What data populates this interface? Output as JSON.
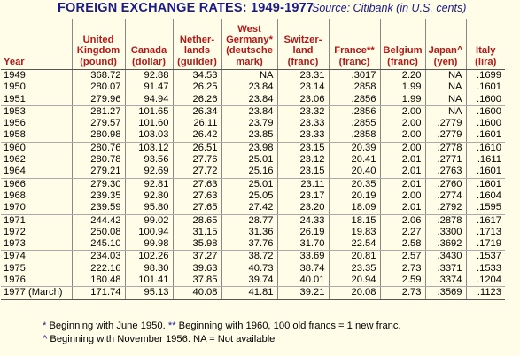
{
  "title": {
    "main": "FOREIGN EXCHANGE RATES: 1949-1977",
    "source": "Source: Citibank (in U.S. cents)"
  },
  "columns": [
    {
      "label": "Year"
    },
    {
      "label": "United Kingdom (pound)"
    },
    {
      "label": "Canada (dollar)"
    },
    {
      "label": "Nether- lands (guilder)"
    },
    {
      "label": "West Germany* (deutsche mark)"
    },
    {
      "label": "Switzer- land (franc)"
    },
    {
      "label": "France** (franc)"
    },
    {
      "label": "Belgium (franc)"
    },
    {
      "label": "Japan^ (yen)"
    },
    {
      "label": "Italy (lira)"
    }
  ],
  "header_lines": [
    [
      "Year"
    ],
    [
      "United",
      "Kingdom",
      "(pound)"
    ],
    [
      "Canada",
      "(dollar)"
    ],
    [
      "Nether-",
      "lands",
      "(guilder)"
    ],
    [
      "West",
      "Germany*",
      "(deutsche",
      "mark)"
    ],
    [
      "Switzer-",
      "land",
      "(franc)"
    ],
    [
      "France**",
      "(franc)"
    ],
    [
      "Belgium",
      "(franc)"
    ],
    [
      "Japan^",
      "(yen)"
    ],
    [
      "Italy",
      "(lira)"
    ]
  ],
  "rows": [
    [
      "1949",
      "368.72",
      "92.88",
      "34.53",
      "NA",
      "23.31",
      ".3017",
      "2.20",
      "NA",
      ".1699"
    ],
    [
      "1950",
      "280.07",
      "91.47",
      "26.25",
      "23.84",
      "23.14",
      ".2858",
      "1.99",
      "NA",
      ".1601"
    ],
    [
      "1951",
      "279.96",
      "94.94",
      "26.26",
      "23.84",
      "23.06",
      ".2856",
      "1.99",
      "NA",
      ".1600"
    ],
    [
      "1953",
      "281.27",
      "101.65",
      "26.34",
      "23.84",
      "23.32",
      ".2856",
      "2.00",
      "NA",
      ".1600"
    ],
    [
      "1956",
      "279.57",
      "101.60",
      "26.11",
      "23.79",
      "23.33",
      ".2855",
      "2.00",
      ".2779",
      ".1600"
    ],
    [
      "1958",
      "280.98",
      "103.03",
      "26.42",
      "23.85",
      "23.33",
      ".2858",
      "2.00",
      ".2779",
      ".1601"
    ],
    [
      "1960",
      "280.76",
      "103.12",
      "26.51",
      "23.98",
      "23.15",
      "20.39",
      "2.00",
      ".2778",
      ".1610"
    ],
    [
      "1962",
      "280.78",
      "93.56",
      "27.76",
      "25.01",
      "23.12",
      "20.41",
      "2.01",
      ".2771",
      ".1611"
    ],
    [
      "1964",
      "279.21",
      "92.69",
      "27.72",
      "25.16",
      "23.15",
      "20.40",
      "2.01",
      ".2763",
      ".1601"
    ],
    [
      "1966",
      "279.30",
      "92.81",
      "27.63",
      "25.01",
      "23.11",
      "20.35",
      "2.01",
      ".2760",
      ".1601"
    ],
    [
      "1968",
      "239.35",
      "92.80",
      "27.63",
      "25.05",
      "23.17",
      "20.19",
      "2.00",
      ".2774",
      ".1604"
    ],
    [
      "1970",
      "239.59",
      "95.80",
      "27.65",
      "27.42",
      "23.20",
      "18.09",
      "2.01",
      ".2792",
      ".1595"
    ],
    [
      "1971",
      "244.42",
      "99.02",
      "28.65",
      "28.77",
      "24.33",
      "18.15",
      "2.06",
      ".2878",
      ".1617"
    ],
    [
      "1972",
      "250.08",
      "100.94",
      "31.15",
      "31.36",
      "26.19",
      "19.83",
      "2.27",
      ".3300",
      ".1713"
    ],
    [
      "1973",
      "245.10",
      "99.98",
      "35.98",
      "37.76",
      "31.70",
      "22.54",
      "2.58",
      ".3692",
      ".1719"
    ],
    [
      "1974",
      "234.03",
      "102.26",
      "37.27",
      "38.72",
      "33.69",
      "20.81",
      "2.57",
      ".3430",
      ".1537"
    ],
    [
      "1975",
      "222.16",
      "98.30",
      "39.63",
      "40.73",
      "38.74",
      "23.35",
      "2.73",
      ".3371",
      ".1533"
    ],
    [
      "1976",
      "180.48",
      "101.41",
      "37.85",
      "39.74",
      "40.01",
      "20.94",
      "2.59",
      ".3374",
      ".1204"
    ],
    [
      "1977 (March)",
      "171.74",
      "95.13",
      "40.08",
      "41.81",
      "39.21",
      "20.08",
      "2.73",
      ".3569",
      ".1123"
    ]
  ],
  "footnotes": [
    {
      "marker": "*",
      "text": "Beginning with June 1950."
    },
    {
      "marker": "**",
      "text": "Beginning with 1960, 100 old francs = 1 new franc."
    },
    {
      "marker": "^",
      "text": "Beginning with November 1956. NA = Not available"
    }
  ]
}
